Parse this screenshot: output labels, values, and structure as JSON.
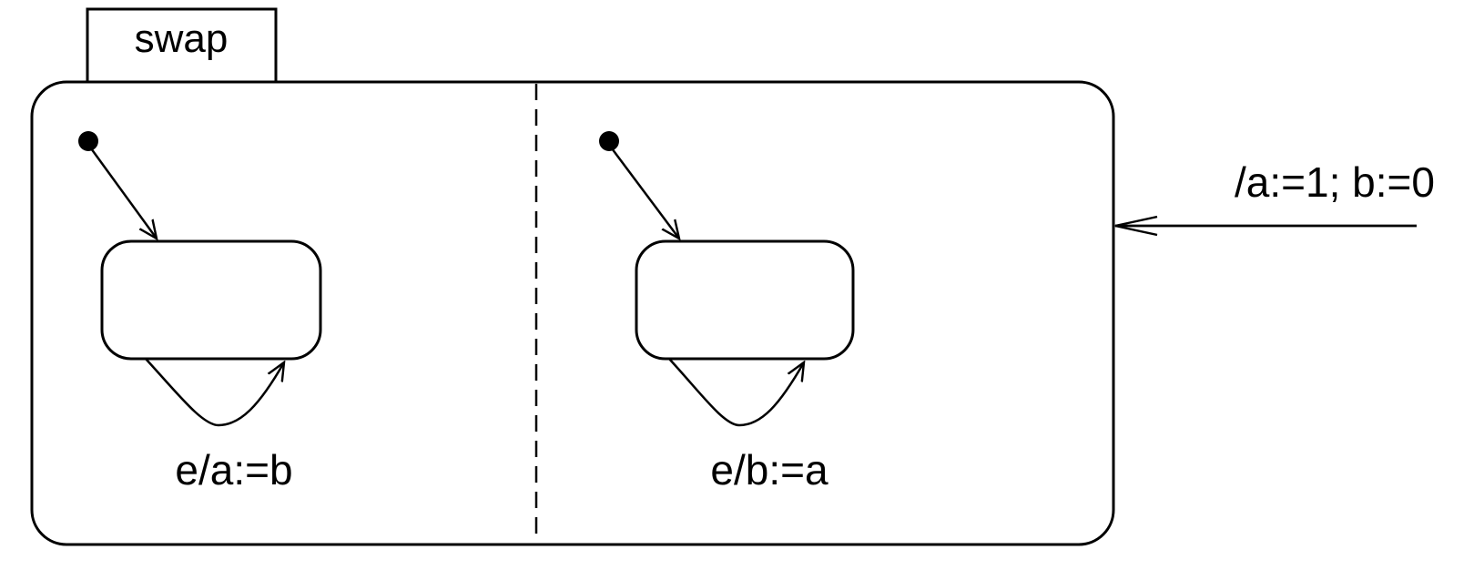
{
  "diagram": {
    "state_name": "swap",
    "regions": [
      {
        "transition_label": "e/a:=b"
      },
      {
        "transition_label": "e/b:=a"
      }
    ],
    "entry_label": "/a:=1; b:=0"
  },
  "colors": {
    "stroke": "#000000",
    "background": "#ffffff"
  }
}
